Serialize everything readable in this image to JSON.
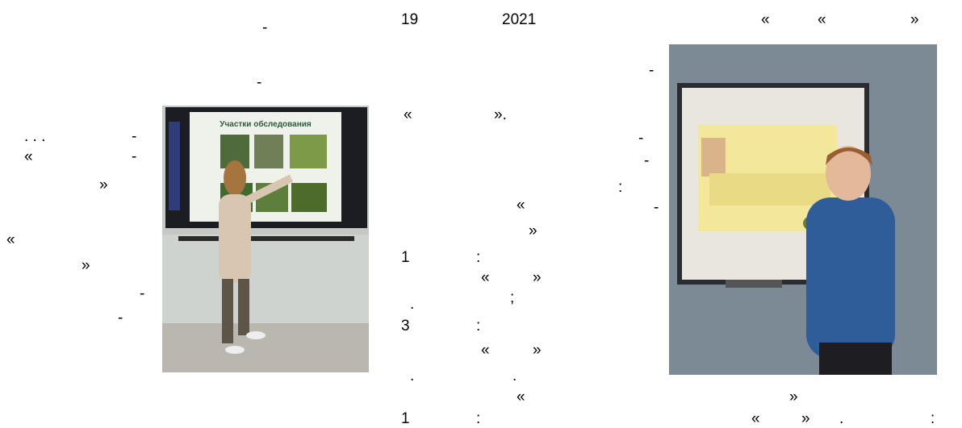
{
  "document": {
    "fragments": [
      "-",
      "-",
      ". . .",
      "-",
      "«",
      "-",
      "»",
      "«",
      "»",
      "-",
      "-",
      "19",
      "2021",
      "«",
      "».",
      "«",
      "»",
      "1",
      ":",
      "«",
      "»",
      ".",
      ";",
      "3",
      ":",
      "«",
      "»",
      ".",
      ".",
      "«",
      "1",
      ":",
      "«",
      "«",
      "»",
      "-",
      "-",
      "-",
      ":",
      "-",
      "»",
      "«",
      "»",
      ".",
      ":"
    ],
    "left_photo": {
      "slide_title": "Участки обследования"
    }
  }
}
